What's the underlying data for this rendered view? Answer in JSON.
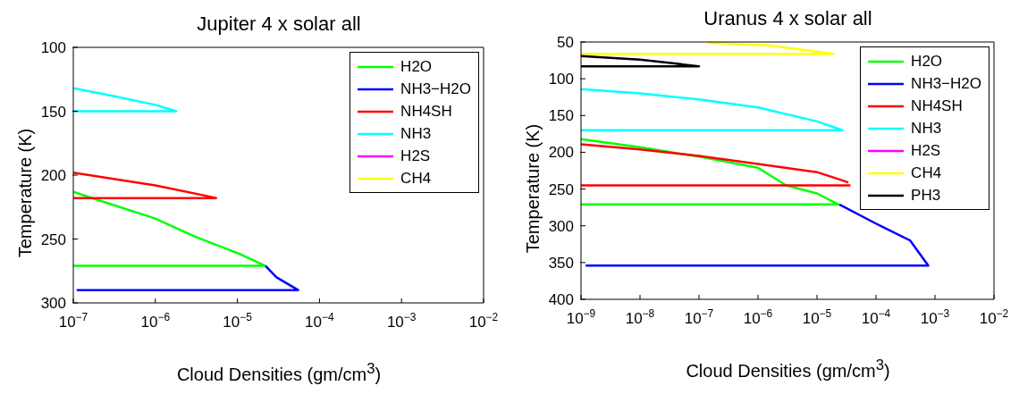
{
  "chart_data": [
    {
      "type": "line",
      "title": "Jupiter 4 x solar all",
      "xlabel": "Cloud Densities (gm/cm$^{3}$)",
      "ylabel": "Temperature (K)",
      "log": "x",
      "xlim": [
        1e-07,
        0.01
      ],
      "xticks": [
        {
          "value": 1e-07,
          "label": "10$^{−7}$"
        },
        {
          "value": 1e-06,
          "label": "10$^{−6}$"
        },
        {
          "value": 1e-05,
          "label": "10$^{−5}$"
        },
        {
          "value": 0.0001,
          "label": "10$^{−4}$"
        },
        {
          "value": 0.001,
          "label": "10$^{−3}$"
        },
        {
          "value": 0.01,
          "label": "10$^{−2}$"
        }
      ],
      "ylim": [
        300,
        100
      ],
      "yticks": [
        100,
        150,
        200,
        250,
        300
      ],
      "legend": "top right",
      "series": [
        {
          "name": "H2O",
          "color": "#00ff00",
          "x": [
            1e-07,
            1.7e-07,
            1e-06,
            3e-06,
            1e-05,
            2.2e-05,
            1e-07
          ],
          "values": [
            213,
            218,
            234,
            248,
            261,
            271,
            271
          ]
        },
        {
          "name": "NH3−H2O",
          "color": "#0000ff",
          "x": [
            2.2e-05,
            3e-05,
            5.5e-05,
            1.1e-07
          ],
          "values": [
            271,
            280,
            290,
            290
          ]
        },
        {
          "name": "NH4SH",
          "color": "#ff0000",
          "x": [
            1e-07,
            1e-06,
            4e-06,
            5.5e-06,
            1e-07
          ],
          "values": [
            198,
            208,
            216,
            218,
            218
          ]
        },
        {
          "name": "NH3",
          "color": "#00ffff",
          "x": [
            1e-07,
            3e-07,
            1e-06,
            1.8e-06,
            1e-07
          ],
          "values": [
            132,
            138,
            145,
            150,
            150
          ]
        },
        {
          "name": "H2S",
          "color": "#ff00ff"
        },
        {
          "name": "CH4",
          "color": "#ffff00"
        }
      ]
    },
    {
      "type": "line",
      "title": "Uranus 4 x solar all",
      "xlabel": "Cloud Densities (gm/cm$^{3}$)",
      "ylabel": "Temperature (K)",
      "log": "x",
      "xlim": [
        1e-09,
        0.01
      ],
      "xticks": [
        {
          "value": 1e-09,
          "label": "10$^{−9}$"
        },
        {
          "value": 1e-08,
          "label": "10$^{−8}$"
        },
        {
          "value": 1e-07,
          "label": "10$^{−7}$"
        },
        {
          "value": 1e-06,
          "label": "10$^{−6}$"
        },
        {
          "value": 1e-05,
          "label": "10$^{−5}$"
        },
        {
          "value": 0.0001,
          "label": "10$^{−4}$"
        },
        {
          "value": 0.001,
          "label": "10$^{−3}$"
        },
        {
          "value": 0.01,
          "label": "10$^{−2}$"
        }
      ],
      "ylim": [
        400,
        50
      ],
      "yticks": [
        50,
        100,
        150,
        200,
        250,
        300,
        350,
        400
      ],
      "legend": "top right",
      "series": [
        {
          "name": "H2O",
          "color": "#00ff00",
          "x": [
            1e-09,
            1e-08,
            1e-07,
            1e-06,
            3e-06,
            1e-05,
            2.3e-05,
            1e-09
          ],
          "values": [
            182,
            193,
            206,
            221,
            245,
            256,
            271,
            271
          ]
        },
        {
          "name": "NH3−H2O",
          "color": "#0000ff",
          "x": [
            2.4e-05,
            0.0001,
            0.00038,
            0.00077,
            1.2e-09
          ],
          "values": [
            271,
            297,
            320,
            354,
            354
          ]
        },
        {
          "name": "NH4SH",
          "color": "#ff0000",
          "x": [
            1e-09,
            1e-08,
            1e-07,
            1e-06,
            1e-05,
            3.4e-05,
            3.6e-05,
            3.7e-05,
            1e-09
          ],
          "values": [
            189,
            196,
            205,
            216,
            227,
            241,
            null,
            245,
            245
          ]
        },
        {
          "name": "NH3",
          "color": "#00ffff",
          "x": [
            1e-09,
            1e-08,
            1e-07,
            1e-06,
            1e-05,
            2.7e-05,
            1e-09
          ],
          "values": [
            114,
            120,
            128,
            139,
            158,
            170,
            170
          ]
        },
        {
          "name": "H2S",
          "color": "#ff00ff"
        },
        {
          "name": "CH4",
          "color": "#ffff00",
          "x": [
            1.4e-07,
            1.6e-06,
            1.9e-05,
            1e-09
          ],
          "values": [
            51,
            55,
            66,
            66
          ]
        },
        {
          "name": "PH3",
          "color": "#000000",
          "x": [
            1e-09,
            1e-08,
            3.6e-08,
            1e-07,
            1e-09
          ],
          "values": [
            69,
            74,
            79,
            83,
            83
          ]
        }
      ]
    }
  ]
}
